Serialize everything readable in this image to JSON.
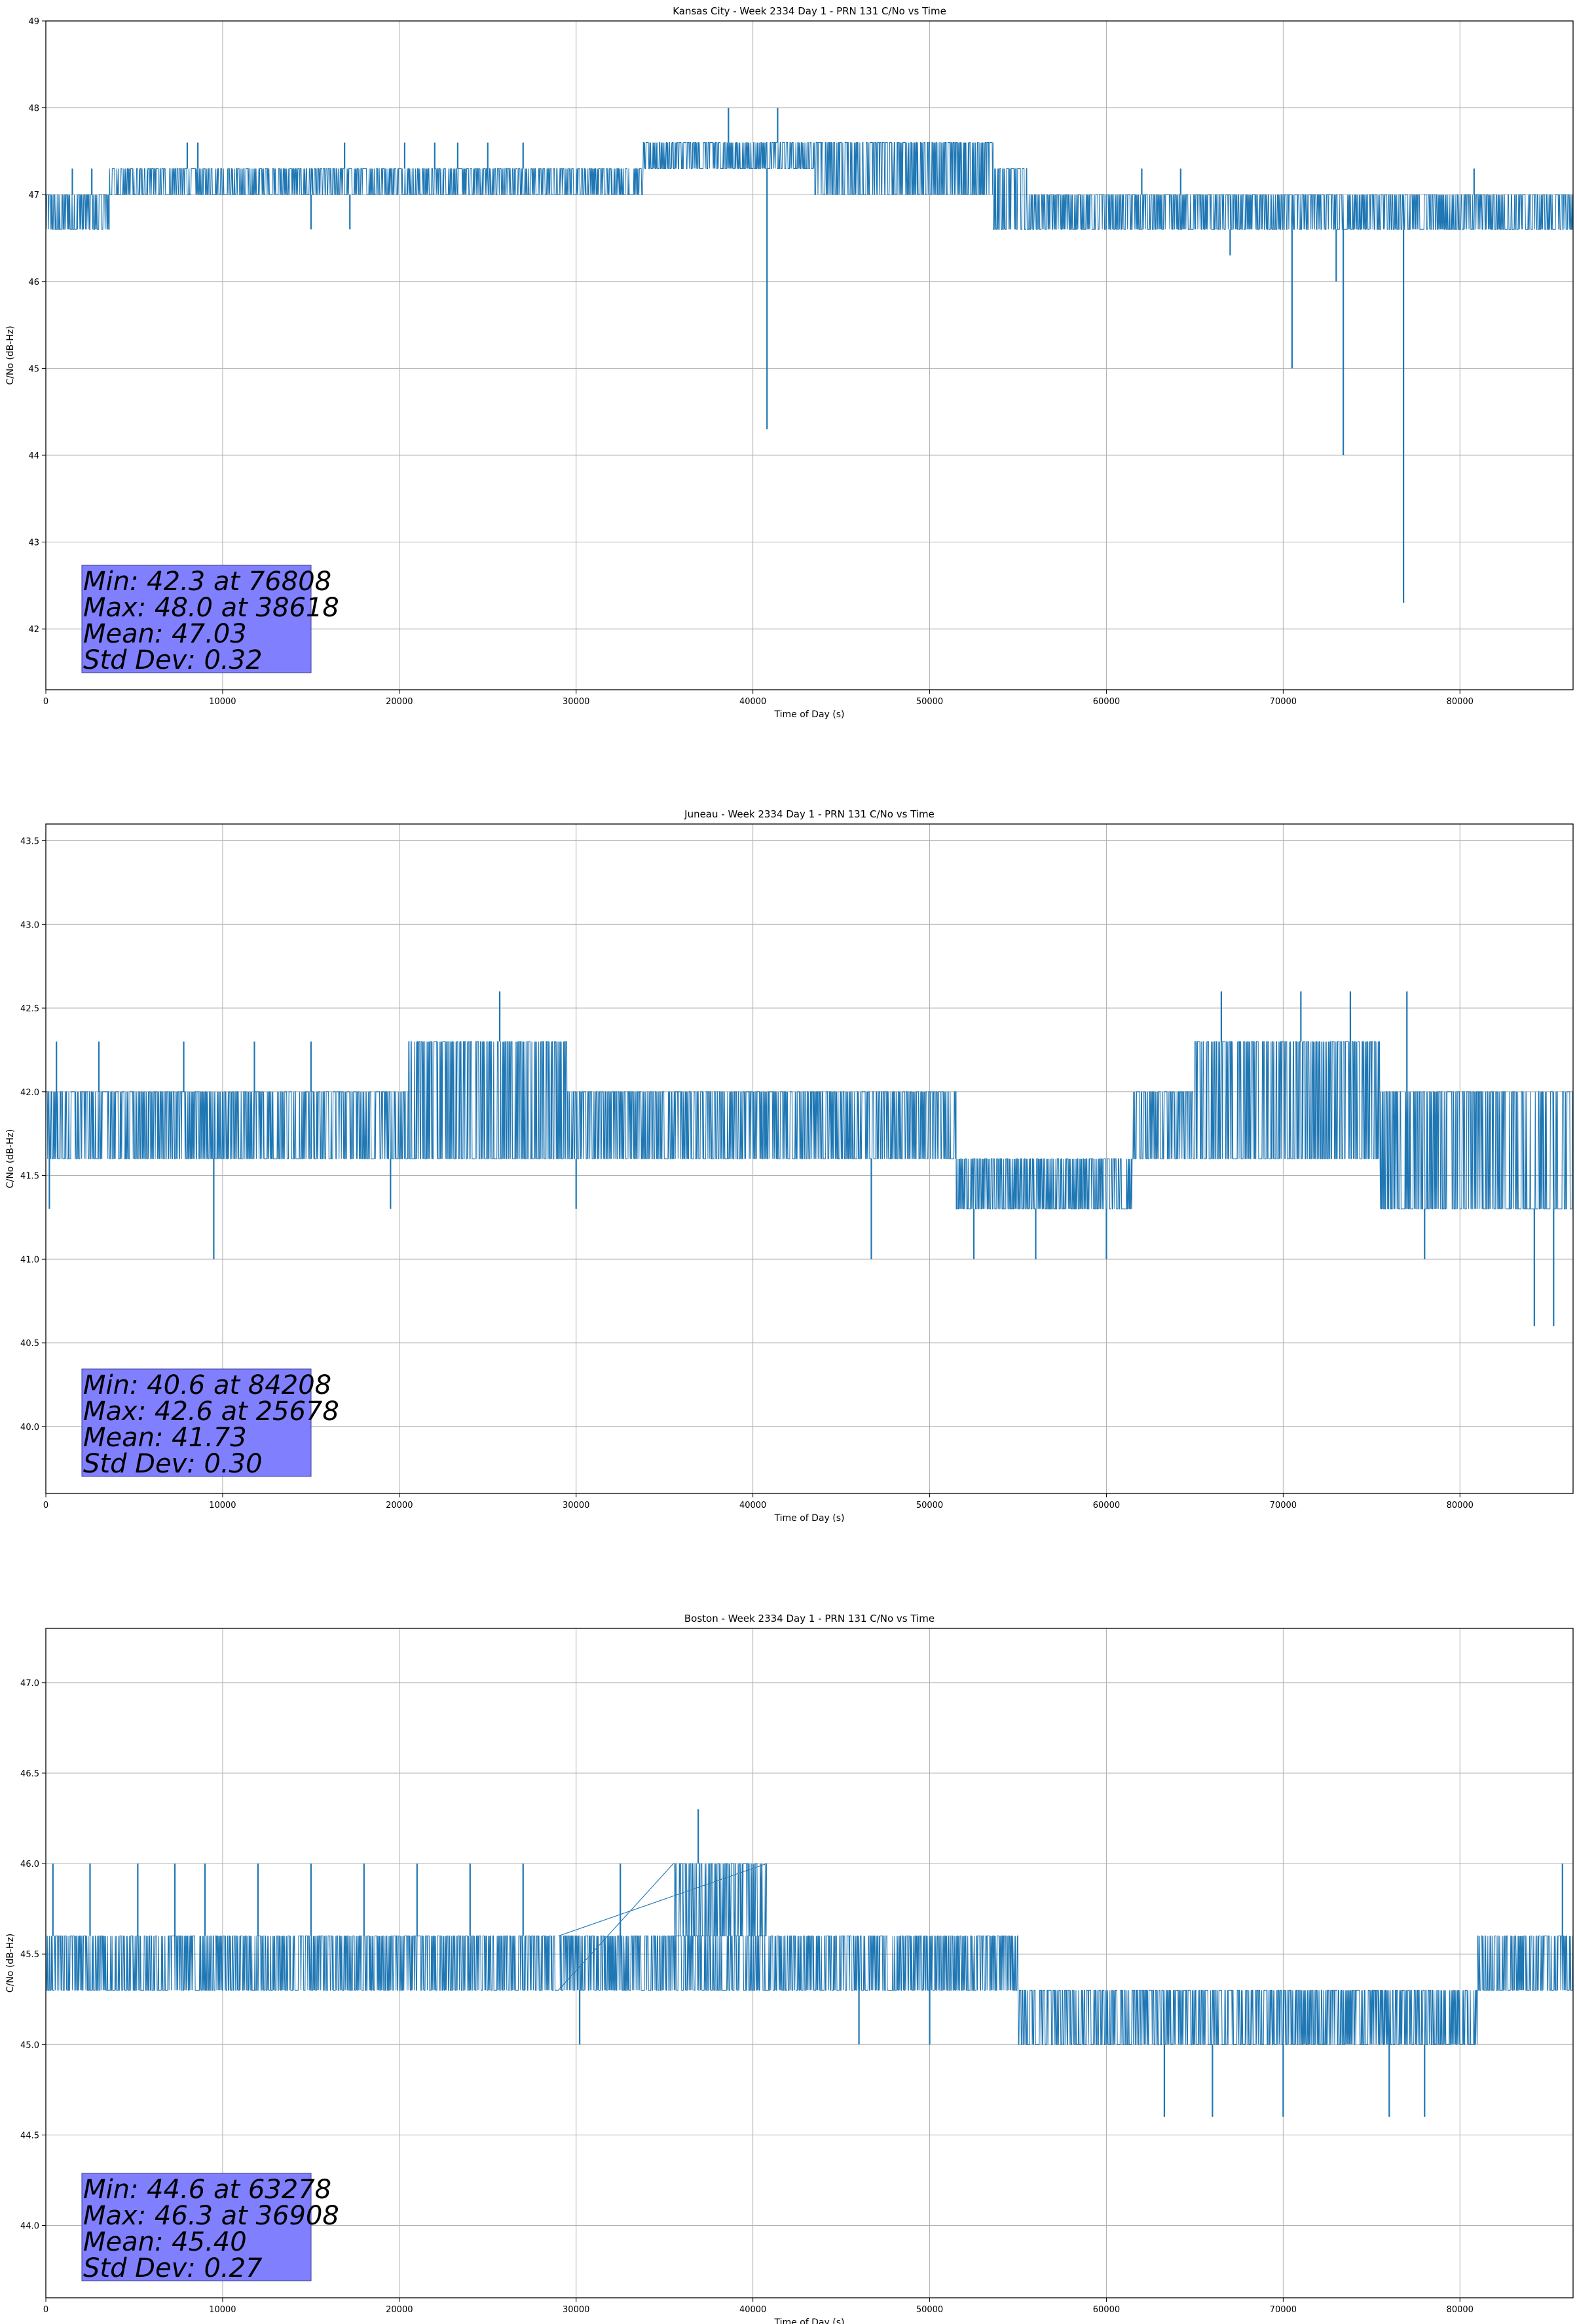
{
  "chart_data": [
    {
      "type": "line",
      "title": "Kansas City - Week 2334 Day 1 - PRN 131 C/No vs Time",
      "xlabel": "Time of Day (s)",
      "ylabel": "C/No (dB-Hz)",
      "xlim": [
        0,
        86400
      ],
      "ylim": [
        41.3,
        49.0
      ],
      "xticks": [
        0,
        10000,
        20000,
        30000,
        40000,
        50000,
        60000,
        70000,
        80000
      ],
      "yticks": [
        42,
        43,
        44,
        45,
        46,
        47,
        48,
        49
      ],
      "ytick_labels": [
        "42",
        "43",
        "44",
        "45",
        "46",
        "47",
        "48",
        "49"
      ],
      "grid": true,
      "color": "#1f77b4",
      "segments": [
        {
          "x0": 0,
          "x1": 3600,
          "lo": 46.6,
          "hi": 47.0
        },
        {
          "x0": 3600,
          "x1": 33800,
          "lo": 47.0,
          "hi": 47.3
        },
        {
          "x0": 33800,
          "x1": 43500,
          "lo": 47.3,
          "hi": 47.6
        },
        {
          "x0": 43500,
          "x1": 53600,
          "lo": 47.0,
          "hi": 47.6
        },
        {
          "x0": 53600,
          "x1": 55500,
          "lo": 46.6,
          "hi": 47.3
        },
        {
          "x0": 55500,
          "x1": 86400,
          "lo": 46.6,
          "hi": 47.0
        }
      ],
      "spikes": [
        {
          "x": 1500,
          "v": 47.3
        },
        {
          "x": 2600,
          "v": 47.3
        },
        {
          "x": 8000,
          "v": 47.6
        },
        {
          "x": 8600,
          "v": 47.6
        },
        {
          "x": 15000,
          "v": 46.6
        },
        {
          "x": 16900,
          "v": 47.6
        },
        {
          "x": 17200,
          "v": 46.6
        },
        {
          "x": 20300,
          "v": 47.6
        },
        {
          "x": 22000,
          "v": 47.6
        },
        {
          "x": 23300,
          "v": 47.6
        },
        {
          "x": 25000,
          "v": 47.6
        },
        {
          "x": 27000,
          "v": 47.6
        },
        {
          "x": 38618,
          "v": 48.0
        },
        {
          "x": 40800,
          "v": 44.3
        },
        {
          "x": 41400,
          "v": 48.0
        },
        {
          "x": 52000,
          "v": 47.6
        },
        {
          "x": 53000,
          "v": 47.6
        },
        {
          "x": 62000,
          "v": 47.3
        },
        {
          "x": 64200,
          "v": 47.3
        },
        {
          "x": 67000,
          "v": 46.3
        },
        {
          "x": 70500,
          "v": 45.0
        },
        {
          "x": 73000,
          "v": 46.0
        },
        {
          "x": 73400,
          "v": 44.0
        },
        {
          "x": 76808,
          "v": 42.3
        },
        {
          "x": 80800,
          "v": 47.3
        }
      ],
      "stats_lines": [
        "Min: 42.3 at 76808",
        "Max: 48.0 at 38618",
        "Mean: 47.03",
        "Std Dev: 0.32"
      ]
    },
    {
      "type": "line",
      "title": "Juneau - Week 2334 Day 1 - PRN 131 C/No vs Time",
      "xlabel": "Time of Day (s)",
      "ylabel": "C/No (dB-Hz)",
      "xlim": [
        0,
        86400
      ],
      "ylim": [
        39.6,
        43.6
      ],
      "xticks": [
        0,
        10000,
        20000,
        30000,
        40000,
        50000,
        60000,
        70000,
        80000
      ],
      "yticks": [
        40.0,
        40.5,
        41.0,
        41.5,
        42.0,
        42.5,
        43.0,
        43.5
      ],
      "ytick_labels": [
        "40.0",
        "40.5",
        "41.0",
        "41.5",
        "42.0",
        "42.5",
        "43.0",
        "43.5"
      ],
      "grid": true,
      "color": "#1f77b4",
      "segments": [
        {
          "x0": 0,
          "x1": 20500,
          "lo": 41.6,
          "hi": 42.0
        },
        {
          "x0": 20500,
          "x1": 29500,
          "lo": 41.6,
          "hi": 42.3
        },
        {
          "x0": 29500,
          "x1": 51500,
          "lo": 41.6,
          "hi": 42.0
        },
        {
          "x0": 51500,
          "x1": 61500,
          "lo": 41.3,
          "hi": 41.6
        },
        {
          "x0": 61500,
          "x1": 65000,
          "lo": 41.6,
          "hi": 42.0
        },
        {
          "x0": 65000,
          "x1": 75500,
          "lo": 41.6,
          "hi": 42.3
        },
        {
          "x0": 75500,
          "x1": 86400,
          "lo": 41.3,
          "hi": 42.0
        }
      ],
      "spikes": [
        {
          "x": 200,
          "v": 41.3
        },
        {
          "x": 600,
          "v": 42.3
        },
        {
          "x": 3000,
          "v": 42.3
        },
        {
          "x": 7800,
          "v": 42.3
        },
        {
          "x": 9500,
          "v": 41.0
        },
        {
          "x": 11800,
          "v": 42.3
        },
        {
          "x": 15000,
          "v": 42.3
        },
        {
          "x": 19500,
          "v": 41.3
        },
        {
          "x": 25678,
          "v": 42.6
        },
        {
          "x": 30000,
          "v": 41.3
        },
        {
          "x": 46700,
          "v": 41.0
        },
        {
          "x": 52500,
          "v": 41.0
        },
        {
          "x": 56000,
          "v": 41.0
        },
        {
          "x": 60000,
          "v": 41.0
        },
        {
          "x": 66500,
          "v": 42.6
        },
        {
          "x": 71000,
          "v": 42.6
        },
        {
          "x": 73800,
          "v": 42.6
        },
        {
          "x": 77000,
          "v": 42.6
        },
        {
          "x": 78000,
          "v": 41.0
        },
        {
          "x": 84208,
          "v": 40.6
        },
        {
          "x": 85300,
          "v": 40.6
        }
      ],
      "stats_lines": [
        "Min: 40.6 at 84208",
        "Max: 42.6 at 25678",
        "Mean: 41.73",
        "Std Dev: 0.30"
      ]
    },
    {
      "type": "line",
      "title": "Boston - Week 2334 Day 1 - PRN 131 C/No vs Time",
      "xlabel": "Time of Day (s)",
      "ylabel": "C/No (dB-Hz)",
      "xlim": [
        0,
        86400
      ],
      "ylim": [
        43.6,
        47.3
      ],
      "xticks": [
        0,
        10000,
        20000,
        30000,
        40000,
        50000,
        60000,
        70000,
        80000
      ],
      "yticks": [
        44.0,
        44.5,
        45.0,
        45.5,
        46.0,
        46.5,
        47.0
      ],
      "ytick_labels": [
        "44.0",
        "44.5",
        "45.0",
        "45.5",
        "46.0",
        "46.5",
        "47.0"
      ],
      "grid": true,
      "color": "#1f77b4",
      "segments": [
        {
          "x0": 0,
          "x1": 29000,
          "lo": 45.3,
          "hi": 45.6
        },
        {
          "x0": 35500,
          "x1": 40800,
          "lo": 45.6,
          "hi": 46.0
        },
        {
          "x0": 29000,
          "x1": 45500,
          "lo": 45.3,
          "hi": 45.6
        },
        {
          "x0": 45500,
          "x1": 55000,
          "lo": 45.3,
          "hi": 45.6
        },
        {
          "x0": 55000,
          "x1": 81000,
          "lo": 45.0,
          "hi": 45.3
        },
        {
          "x0": 81000,
          "x1": 86400,
          "lo": 45.3,
          "hi": 45.6
        }
      ],
      "spikes": [
        {
          "x": 400,
          "v": 46.0
        },
        {
          "x": 2500,
          "v": 46.0
        },
        {
          "x": 5200,
          "v": 46.0
        },
        {
          "x": 7300,
          "v": 46.0
        },
        {
          "x": 9000,
          "v": 46.0
        },
        {
          "x": 12000,
          "v": 46.0
        },
        {
          "x": 15000,
          "v": 46.0
        },
        {
          "x": 18000,
          "v": 46.0
        },
        {
          "x": 21000,
          "v": 46.0
        },
        {
          "x": 24000,
          "v": 46.0
        },
        {
          "x": 27000,
          "v": 46.0
        },
        {
          "x": 30200,
          "v": 45.0
        },
        {
          "x": 32500,
          "v": 46.0
        },
        {
          "x": 36908,
          "v": 46.3
        },
        {
          "x": 46000,
          "v": 45.0
        },
        {
          "x": 50000,
          "v": 45.0
        },
        {
          "x": 63278,
          "v": 44.6
        },
        {
          "x": 66000,
          "v": 44.6
        },
        {
          "x": 70000,
          "v": 44.6
        },
        {
          "x": 76000,
          "v": 44.6
        },
        {
          "x": 78000,
          "v": 44.6
        },
        {
          "x": 85800,
          "v": 46.0
        }
      ],
      "stats_lines": [
        "Min: 44.6 at 63278",
        "Max: 46.3 at 36908",
        "Mean: 45.40",
        "Std Dev: 0.27"
      ]
    }
  ]
}
